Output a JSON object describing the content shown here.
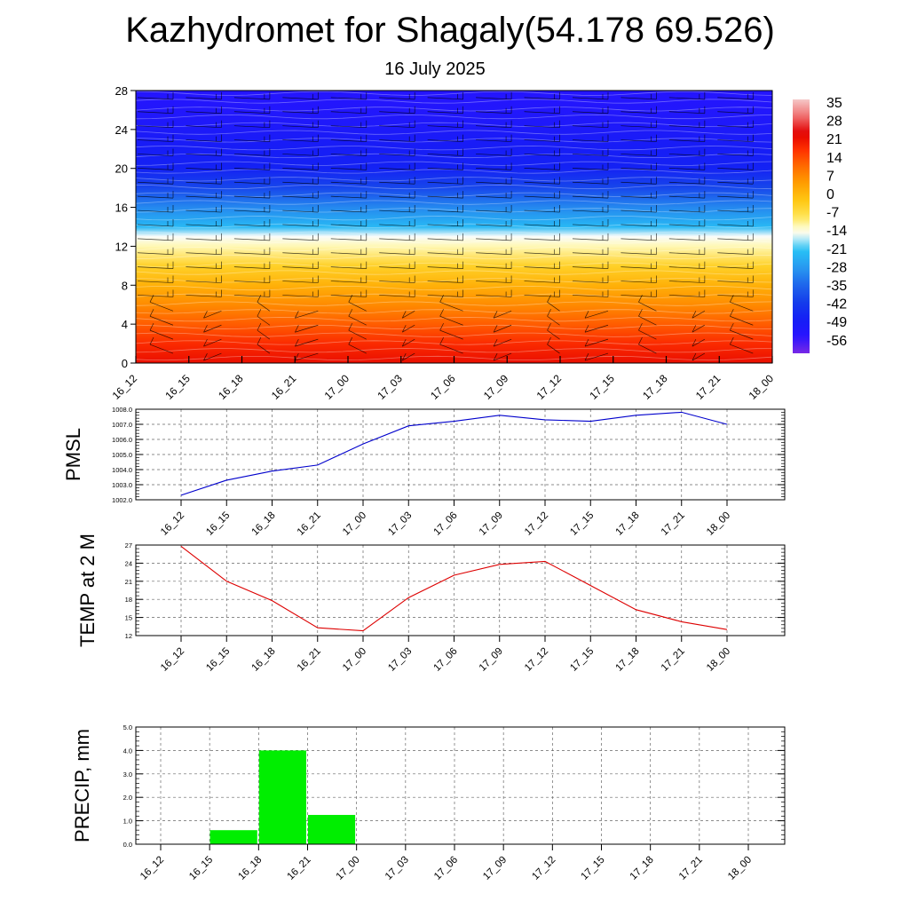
{
  "header": {
    "title": "Kazhydromet for Shagaly(54.178 69.526)",
    "subtitle": "16 July 2025"
  },
  "time_labels": [
    "16_12",
    "16_15",
    "16_18",
    "16_21",
    "17_00",
    "17_03",
    "17_06",
    "17_09",
    "17_12",
    "17_15",
    "17_18",
    "17_21",
    "18_00"
  ],
  "colors": {
    "pmsl_line": "#0000cc",
    "temp_line": "#dd0000",
    "precip_bar": "#00ee00"
  },
  "chart_data": [
    {
      "type": "heatmap",
      "title": "",
      "xlabel": "",
      "ylabel": "",
      "categories": [
        "16_12",
        "16_15",
        "16_18",
        "16_21",
        "17_00",
        "17_03",
        "17_06",
        "17_09",
        "17_12",
        "17_15",
        "17_18",
        "17_21",
        "18_00"
      ],
      "y_ticks": [
        0,
        4,
        8,
        12,
        16,
        20,
        24,
        28
      ],
      "ylim": [
        0,
        28
      ],
      "colorbar_labels": [
        "35",
        "28",
        "21",
        "14",
        "7",
        "0",
        "-7",
        "-14",
        "-21",
        "-28",
        "-35",
        "-42",
        "-49",
        "-56"
      ],
      "colorbar_range": [
        -63,
        42
      ],
      "temperature_profile": {
        "heights": [
          0,
          2,
          4,
          6,
          8,
          10,
          12,
          13,
          14,
          16,
          18,
          20,
          22,
          24,
          26,
          28
        ],
        "values": [
          26,
          22,
          16,
          10,
          4,
          -2,
          -10,
          -14,
          -22,
          -30,
          -40,
          -48,
          -50,
          -52,
          -54,
          -55
        ]
      },
      "wind_barbs": true
    },
    {
      "type": "line",
      "title": "",
      "xlabel": "",
      "ylabel": "PMSL",
      "categories": [
        "16_12",
        "16_15",
        "16_18",
        "16_21",
        "17_00",
        "17_03",
        "17_06",
        "17_09",
        "17_12",
        "17_15",
        "17_18",
        "17_21",
        "18_00"
      ],
      "series": [
        {
          "values": [
            1002.3,
            1003.3,
            1003.9,
            1004.3,
            1005.7,
            1006.9,
            1007.2,
            1007.6,
            1007.3,
            1007.2,
            1007.6,
            1007.8,
            1007.0
          ]
        }
      ],
      "y_ticks": [
        "1002.0",
        "1003.0",
        "1004.0",
        "1005.0",
        "1006.0",
        "1007.0",
        "1008.0"
      ],
      "ylim": [
        1002,
        1008
      ],
      "grid": true
    },
    {
      "type": "line",
      "title": "",
      "xlabel": "",
      "ylabel": "TEMP at 2 M",
      "categories": [
        "16_12",
        "16_15",
        "16_18",
        "16_21",
        "17_00",
        "17_03",
        "17_06",
        "17_09",
        "17_12",
        "17_15",
        "17_18",
        "17_21",
        "18_00"
      ],
      "series": [
        {
          "values": [
            26.8,
            21.0,
            17.8,
            13.3,
            12.8,
            18.3,
            22.0,
            23.8,
            24.3,
            20.3,
            16.3,
            14.3,
            13.0
          ]
        }
      ],
      "y_ticks": [
        "12",
        "15",
        "18",
        "21",
        "24",
        "27"
      ],
      "ylim": [
        12,
        27
      ],
      "grid": true
    },
    {
      "type": "bar",
      "title": "",
      "xlabel": "",
      "ylabel": "PRECIP, mm",
      "categories": [
        "16_12",
        "16_15",
        "16_18",
        "16_21",
        "17_00",
        "17_03",
        "17_06",
        "17_09",
        "17_12",
        "17_15",
        "17_18",
        "17_21",
        "18_00"
      ],
      "values": [
        0,
        0.6,
        4.0,
        1.25,
        0,
        0,
        0,
        0,
        0,
        0,
        0,
        0,
        0
      ],
      "y_ticks": [
        "0.0",
        "1.0",
        "2.0",
        "3.0",
        "4.0",
        "5.0"
      ],
      "ylim": [
        0,
        5
      ],
      "grid": true
    }
  ]
}
